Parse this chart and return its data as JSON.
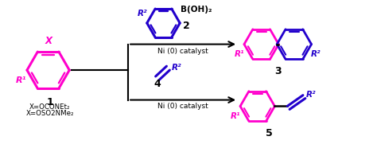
{
  "fig_width": 4.74,
  "fig_height": 1.91,
  "dpi": 100,
  "bg_color": "#ffffff",
  "pink": "#FF00CC",
  "blue": "#2200CC",
  "black": "#000000",
  "compound1_label": "1",
  "compound2_label": "2",
  "compound3_label": "3",
  "compound4_label": "4",
  "compound5_label": "5",
  "x_label": "X",
  "r1_label": "R¹",
  "r2_label": "R²",
  "boh2_label": "B(OH)₂",
  "ni_catalyst": "Ni (0) catalyst",
  "x_def1": "X=OCONEt₂",
  "x_def2": "X=OSO2NMe₂"
}
